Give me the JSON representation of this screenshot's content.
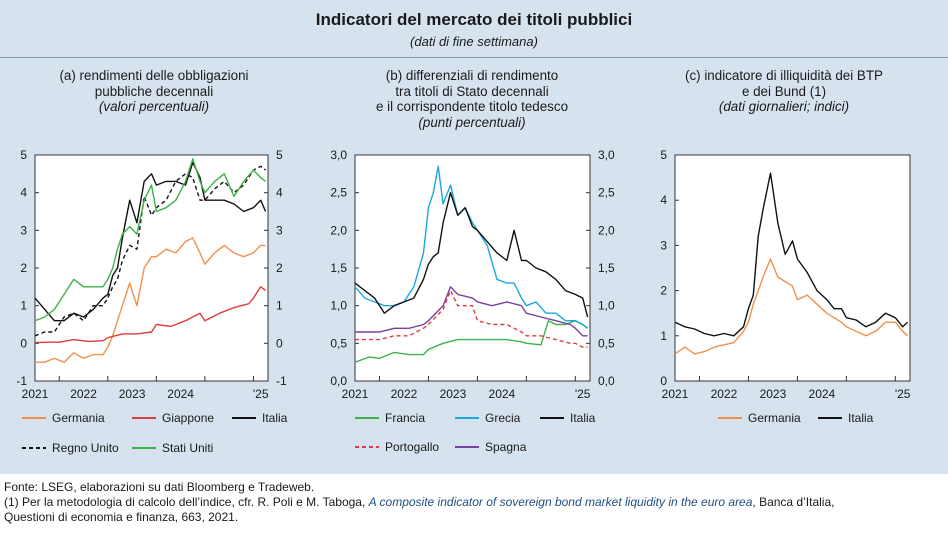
{
  "title": "Indicatori del mercato dei titoli pubblici",
  "subtitle": "(dati di fine settimana)",
  "panels": [
    {
      "line1": "(a) rendimenti delle obbligazioni",
      "line2": "pubbliche decennali",
      "line3": "",
      "unit": "(valori percentuali)"
    },
    {
      "line1": "(b) differenziali di rendimento",
      "line2": "tra titoli di Stato decennali",
      "line3": "e il corrispondente titolo tedesco",
      "unit": "(punti percentuali)"
    },
    {
      "line1": "(c) indicatore di illiquidità dei BTP",
      "line2": "e dei Bund (1)",
      "line3": "",
      "unit": "(dati giornalieri; indici)"
    }
  ],
  "chart_data": [
    {
      "type": "line",
      "title": "(a) rendimenti delle obbligazioni pubbliche decennali",
      "ylabel": "(valori percentuali)",
      "ylim": [
        -1,
        5
      ],
      "yticks": [
        "-1",
        "0",
        "1",
        "2",
        "3",
        "4",
        "5"
      ],
      "xticks": [
        "2021",
        "2022",
        "2023",
        "2024",
        "'25"
      ],
      "xlim": [
        2020.5,
        2025.3
      ],
      "series": [
        {
          "name": "Germania",
          "color": "#f0914d",
          "dash": false,
          "x": [
            2020.5,
            2020.7,
            2020.9,
            2021.1,
            2021.3,
            2021.5,
            2021.7,
            2021.9,
            2022.0,
            2022.1,
            2022.2,
            2022.3,
            2022.45,
            2022.6,
            2022.75,
            2022.9,
            2023.0,
            2023.2,
            2023.4,
            2023.6,
            2023.75,
            2023.9,
            2024.0,
            2024.2,
            2024.4,
            2024.6,
            2024.8,
            2025.0,
            2025.15,
            2025.25
          ],
          "values": [
            -0.5,
            -0.5,
            -0.4,
            -0.5,
            -0.25,
            -0.4,
            -0.3,
            -0.3,
            -0.1,
            0.2,
            0.6,
            1.0,
            1.6,
            1.0,
            2.0,
            2.3,
            2.3,
            2.5,
            2.4,
            2.7,
            2.8,
            2.4,
            2.1,
            2.4,
            2.6,
            2.4,
            2.3,
            2.4,
            2.6,
            2.6
          ]
        },
        {
          "name": "Giappone",
          "color": "#e23b3b",
          "dash": false,
          "x": [
            2020.5,
            2020.8,
            2021.0,
            2021.3,
            2021.6,
            2021.9,
            2022.0,
            2022.3,
            2022.6,
            2022.9,
            2023.0,
            2023.3,
            2023.6,
            2023.9,
            2024.0,
            2024.3,
            2024.6,
            2024.9,
            2025.0,
            2025.15,
            2025.25
          ],
          "values": [
            0.02,
            0.03,
            0.03,
            0.1,
            0.05,
            0.07,
            0.15,
            0.25,
            0.25,
            0.3,
            0.5,
            0.45,
            0.6,
            0.8,
            0.6,
            0.8,
            0.95,
            1.05,
            1.2,
            1.5,
            1.4
          ]
        },
        {
          "name": "Italia",
          "color": "#111111",
          "dash": false,
          "x": [
            2020.5,
            2020.7,
            2020.9,
            2021.1,
            2021.3,
            2021.5,
            2021.7,
            2021.9,
            2022.0,
            2022.1,
            2022.2,
            2022.3,
            2022.45,
            2022.6,
            2022.75,
            2022.9,
            2023.0,
            2023.2,
            2023.4,
            2023.6,
            2023.75,
            2023.9,
            2024.0,
            2024.2,
            2024.4,
            2024.6,
            2024.8,
            2025.0,
            2025.15,
            2025.25
          ],
          "values": [
            1.2,
            0.9,
            0.6,
            0.6,
            0.8,
            0.7,
            0.9,
            1.2,
            1.3,
            1.8,
            2.0,
            2.8,
            3.8,
            3.2,
            4.3,
            4.5,
            4.2,
            4.3,
            4.3,
            4.2,
            4.8,
            4.4,
            3.8,
            3.8,
            3.8,
            3.7,
            3.5,
            3.6,
            3.8,
            3.5
          ]
        },
        {
          "name": "Regno Unito",
          "color": "#111111",
          "dash": true,
          "x": [
            2020.5,
            2020.7,
            2020.9,
            2021.1,
            2021.3,
            2021.5,
            2021.7,
            2021.9,
            2022.0,
            2022.1,
            2022.2,
            2022.3,
            2022.45,
            2022.6,
            2022.75,
            2022.9,
            2023.0,
            2023.2,
            2023.4,
            2023.6,
            2023.75,
            2023.9,
            2024.0,
            2024.2,
            2024.4,
            2024.6,
            2024.8,
            2025.0,
            2025.15,
            2025.25
          ],
          "values": [
            0.2,
            0.3,
            0.3,
            0.7,
            0.8,
            0.6,
            1.0,
            1.0,
            1.2,
            1.5,
            1.7,
            2.2,
            2.6,
            2.5,
            3.9,
            3.4,
            3.6,
            3.8,
            4.3,
            4.5,
            4.4,
            3.8,
            3.8,
            4.1,
            4.3,
            4.0,
            4.2,
            4.6,
            4.7,
            4.6
          ]
        },
        {
          "name": "Stati Uniti",
          "color": "#3fb14a",
          "dash": false,
          "x": [
            2020.5,
            2020.7,
            2020.9,
            2021.1,
            2021.3,
            2021.5,
            2021.7,
            2021.9,
            2022.0,
            2022.1,
            2022.2,
            2022.3,
            2022.45,
            2022.6,
            2022.75,
            2022.9,
            2023.0,
            2023.2,
            2023.4,
            2023.6,
            2023.75,
            2023.9,
            2024.0,
            2024.2,
            2024.4,
            2024.6,
            2024.8,
            2025.0,
            2025.15,
            2025.25
          ],
          "values": [
            0.6,
            0.7,
            0.9,
            1.3,
            1.7,
            1.5,
            1.5,
            1.5,
            1.7,
            2.0,
            2.5,
            2.9,
            3.1,
            2.9,
            3.8,
            4.2,
            3.5,
            3.6,
            3.8,
            4.3,
            4.9,
            4.3,
            4.0,
            4.3,
            4.5,
            3.9,
            4.3,
            4.6,
            4.4,
            4.3
          ]
        }
      ]
    },
    {
      "type": "line",
      "title": "(b) differenziali di rendimento tra titoli di Stato decennali e il corrispondente titolo tedesco",
      "ylabel": "(punti percentuali)",
      "ylim": [
        0,
        3
      ],
      "yticks": [
        "0,0",
        "0,5",
        "1,0",
        "1,5",
        "2,0",
        "2,5",
        "3,0"
      ],
      "xticks": [
        "2021",
        "2022",
        "2023",
        "2024",
        "'25"
      ],
      "xlim": [
        2020.5,
        2025.3
      ],
      "series": [
        {
          "name": "Francia",
          "color": "#3fb14a",
          "dash": false,
          "x": [
            2020.5,
            2020.8,
            2021.0,
            2021.3,
            2021.6,
            2021.9,
            2022.0,
            2022.3,
            2022.6,
            2022.9,
            2023.0,
            2023.3,
            2023.6,
            2023.9,
            2024.0,
            2024.3,
            2024.45,
            2024.6,
            2024.8,
            2025.0,
            2025.15,
            2025.25
          ],
          "values": [
            0.25,
            0.32,
            0.3,
            0.38,
            0.35,
            0.35,
            0.42,
            0.5,
            0.55,
            0.55,
            0.55,
            0.55,
            0.55,
            0.52,
            0.5,
            0.48,
            0.8,
            0.75,
            0.75,
            0.8,
            0.75,
            0.7
          ]
        },
        {
          "name": "Grecia",
          "color": "#1aa7e0",
          "dash": false,
          "x": [
            2020.5,
            2020.7,
            2020.9,
            2021.1,
            2021.3,
            2021.5,
            2021.7,
            2021.9,
            2022.0,
            2022.1,
            2022.2,
            2022.3,
            2022.45,
            2022.6,
            2022.75,
            2022.9,
            2023.0,
            2023.2,
            2023.4,
            2023.6,
            2023.75,
            2023.9,
            2024.0,
            2024.2,
            2024.4,
            2024.6,
            2024.8,
            2025.0,
            2025.15,
            2025.25
          ],
          "values": [
            1.25,
            1.1,
            1.05,
            1.0,
            1.0,
            1.05,
            1.25,
            1.7,
            2.3,
            2.5,
            2.85,
            2.35,
            2.6,
            2.2,
            2.3,
            2.1,
            2.0,
            1.8,
            1.35,
            1.3,
            1.3,
            1.1,
            1.0,
            1.05,
            0.9,
            0.9,
            0.8,
            0.8,
            0.75,
            0.7
          ]
        },
        {
          "name": "Italia",
          "color": "#111111",
          "dash": false,
          "x": [
            2020.5,
            2020.7,
            2020.9,
            2021.1,
            2021.3,
            2021.5,
            2021.7,
            2021.9,
            2022.0,
            2022.1,
            2022.2,
            2022.3,
            2022.45,
            2022.6,
            2022.75,
            2022.9,
            2023.0,
            2023.2,
            2023.4,
            2023.6,
            2023.75,
            2023.9,
            2024.0,
            2024.2,
            2024.4,
            2024.6,
            2024.8,
            2025.0,
            2025.15,
            2025.25
          ],
          "values": [
            1.3,
            1.2,
            1.1,
            0.9,
            1.0,
            1.05,
            1.1,
            1.35,
            1.55,
            1.65,
            1.7,
            2.1,
            2.5,
            2.2,
            2.3,
            2.05,
            2.0,
            1.85,
            1.7,
            1.6,
            2.0,
            1.6,
            1.6,
            1.5,
            1.45,
            1.35,
            1.2,
            1.15,
            1.1,
            0.85
          ]
        },
        {
          "name": "Portogallo",
          "color": "#e23b3b",
          "dash": true,
          "x": [
            2020.5,
            2020.8,
            2021.0,
            2021.3,
            2021.6,
            2021.9,
            2022.0,
            2022.3,
            2022.45,
            2022.6,
            2022.9,
            2023.0,
            2023.3,
            2023.6,
            2023.9,
            2024.0,
            2024.3,
            2024.6,
            2024.9,
            2025.0,
            2025.15,
            2025.25
          ],
          "values": [
            0.55,
            0.55,
            0.55,
            0.6,
            0.6,
            0.7,
            0.75,
            0.95,
            1.2,
            1.0,
            1.0,
            0.8,
            0.75,
            0.75,
            0.65,
            0.6,
            0.6,
            0.55,
            0.5,
            0.5,
            0.45,
            0.45
          ]
        },
        {
          "name": "Spagna",
          "color": "#7b3fa0",
          "dash": false,
          "x": [
            2020.5,
            2020.8,
            2021.0,
            2021.3,
            2021.6,
            2021.9,
            2022.0,
            2022.3,
            2022.45,
            2022.6,
            2022.9,
            2023.0,
            2023.3,
            2023.6,
            2023.9,
            2024.0,
            2024.3,
            2024.6,
            2024.9,
            2025.0,
            2025.15,
            2025.25
          ],
          "values": [
            0.65,
            0.65,
            0.65,
            0.7,
            0.7,
            0.75,
            0.8,
            1.0,
            1.25,
            1.15,
            1.1,
            1.05,
            1.0,
            1.05,
            1.0,
            0.9,
            0.85,
            0.8,
            0.75,
            0.7,
            0.6,
            0.6
          ]
        }
      ]
    },
    {
      "type": "line",
      "title": "(c) indicatore di illiquidità dei BTP e dei Bund (1)",
      "ylabel": "(dati giornalieri; indici)",
      "ylim": [
        0,
        5
      ],
      "yticks": [
        "0",
        "1",
        "2",
        "3",
        "4",
        "5"
      ],
      "xticks": [
        "2021",
        "2022",
        "2023",
        "2024",
        "'25"
      ],
      "xlim": [
        2020.5,
        2025.3
      ],
      "series": [
        {
          "name": "Germania",
          "color": "#f0914d",
          "dash": false,
          "x": [
            2020.5,
            2020.7,
            2020.9,
            2021.1,
            2021.3,
            2021.5,
            2021.7,
            2021.9,
            2022.0,
            2022.1,
            2022.2,
            2022.3,
            2022.45,
            2022.6,
            2022.75,
            2022.9,
            2023.0,
            2023.2,
            2023.4,
            2023.6,
            2023.75,
            2023.9,
            2024.0,
            2024.2,
            2024.4,
            2024.6,
            2024.8,
            2025.0,
            2025.15,
            2025.25
          ],
          "values": [
            0.6,
            0.75,
            0.6,
            0.65,
            0.75,
            0.8,
            0.85,
            1.1,
            1.3,
            1.7,
            2.0,
            2.3,
            2.7,
            2.3,
            2.2,
            2.1,
            1.8,
            1.9,
            1.7,
            1.5,
            1.4,
            1.3,
            1.2,
            1.1,
            1.0,
            1.1,
            1.3,
            1.3,
            1.1,
            1.0
          ]
        },
        {
          "name": "Italia",
          "color": "#111111",
          "dash": false,
          "x": [
            2020.5,
            2020.7,
            2020.9,
            2021.1,
            2021.3,
            2021.5,
            2021.7,
            2021.9,
            2022.0,
            2022.1,
            2022.2,
            2022.3,
            2022.45,
            2022.6,
            2022.75,
            2022.9,
            2023.0,
            2023.2,
            2023.4,
            2023.6,
            2023.75,
            2023.9,
            2024.0,
            2024.2,
            2024.4,
            2024.6,
            2024.8,
            2025.0,
            2025.15,
            2025.25
          ],
          "values": [
            1.3,
            1.2,
            1.15,
            1.05,
            1.0,
            1.05,
            1.0,
            1.2,
            1.6,
            1.9,
            3.2,
            3.8,
            4.6,
            3.5,
            2.8,
            3.1,
            2.7,
            2.4,
            2.0,
            1.8,
            1.6,
            1.6,
            1.4,
            1.35,
            1.2,
            1.3,
            1.5,
            1.4,
            1.2,
            1.3
          ]
        }
      ]
    }
  ],
  "legends": [
    [
      [
        "Germania",
        "Giappone",
        "Italia"
      ],
      [
        "Regno Unito",
        "Stati Uniti"
      ]
    ],
    [
      [
        "Francia",
        "Grecia",
        "Italia"
      ],
      [
        "Portogallo",
        "Spagna"
      ]
    ],
    [
      [
        "Germania",
        "Italia"
      ]
    ]
  ],
  "footer": {
    "source": "Fonte: LSEG, elaborazioni su dati Bloomberg e Tradeweb.",
    "note_pre": "(1) Per la metodologia di calcolo dell’indice, cfr. R. Poli e M. Taboga, ",
    "note_title": "A composite indicator of sovereign bond market liquidity in the euro area",
    "note_post": ", Banca d’Italia,",
    "note_line2": "Questioni di economia e finanza, 663, 2021."
  }
}
